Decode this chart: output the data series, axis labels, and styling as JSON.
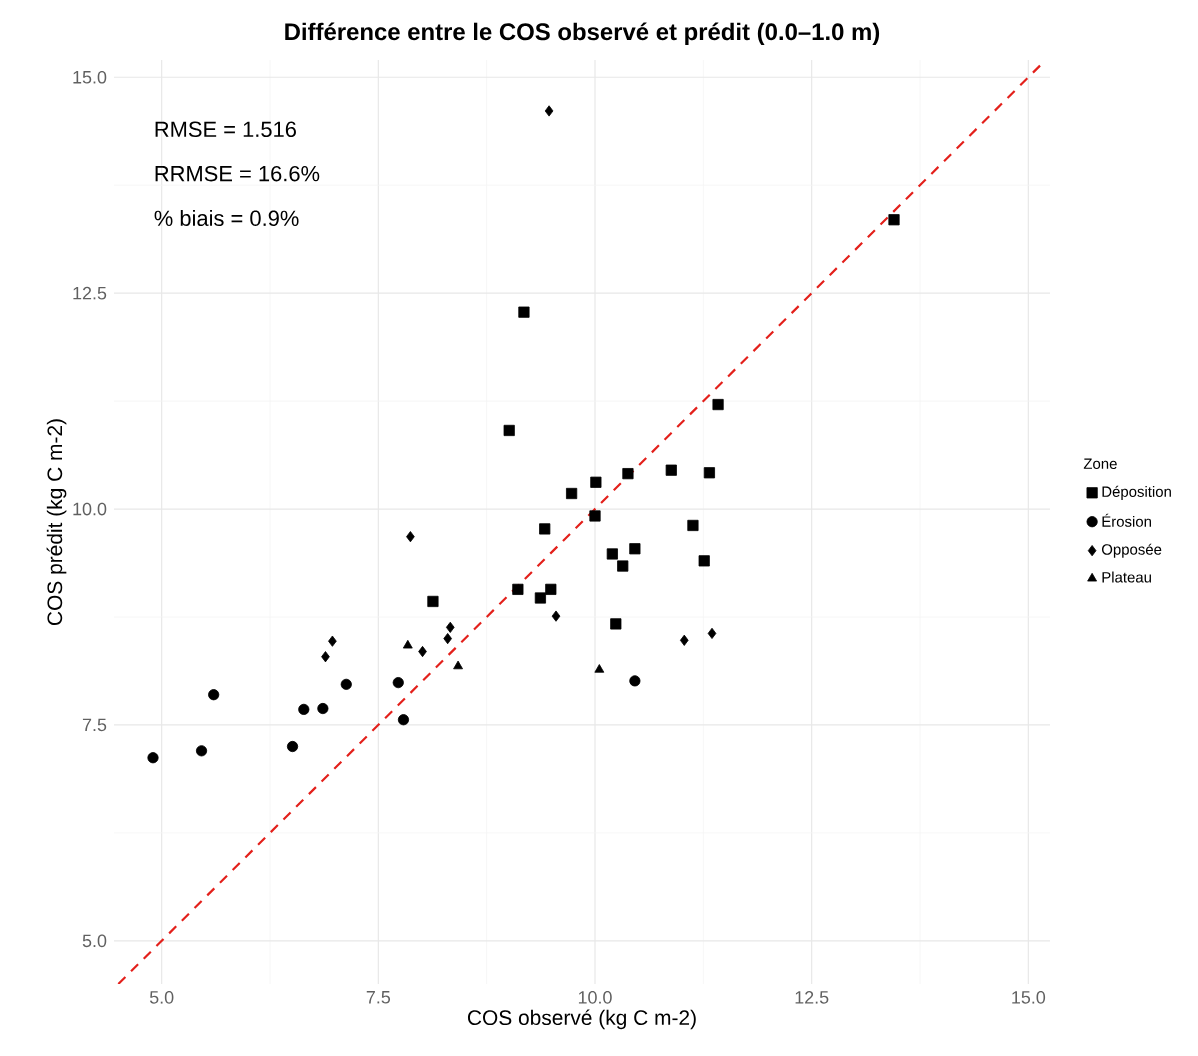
{
  "chart_data": {
    "type": "scatter",
    "title": "Différence entre le COS observé et prédit (0.0–1.0 m)",
    "xlabel": "COS observé (kg C m-2)",
    "ylabel": "COS prédit (kg C m-2)",
    "legend_title": "Zone",
    "annotations": [
      "RMSE = 1.516",
      "RRMSE = 16.6%",
      "% biais = 0.9%"
    ],
    "xlim": [
      4.45,
      15.25
    ],
    "ylim": [
      4.5,
      15.2
    ],
    "xticks": [
      {
        "value": 5,
        "label": "5.0"
      },
      {
        "value": 7.5,
        "label": "7.5"
      },
      {
        "value": 10,
        "label": "10.0"
      },
      {
        "value": 12.5,
        "label": "12.5"
      },
      {
        "value": 15,
        "label": "15.0"
      }
    ],
    "yticks": [
      {
        "value": 5,
        "label": "5.0"
      },
      {
        "value": 7.5,
        "label": "7.5"
      },
      {
        "value": 10,
        "label": "10.0"
      },
      {
        "value": 12.5,
        "label": "12.5"
      },
      {
        "value": 15,
        "label": "15.0"
      }
    ],
    "grid": true,
    "legend": "right",
    "series": [
      {
        "name": "Déposition",
        "color": "#000000",
        "marker": "square",
        "x": [
          8.13,
          9.11,
          9.37,
          9.49,
          9.42,
          9.73,
          10.0,
          13.45,
          9.18,
          9.01,
          11.42,
          10.01,
          10.38,
          10.88,
          11.32,
          11.13,
          10.2,
          10.46,
          10.32,
          11.26,
          10.24
        ],
        "values": [
          8.93,
          9.07,
          8.97,
          9.07,
          9.77,
          10.18,
          9.92,
          13.35,
          12.28,
          10.91,
          11.21,
          10.31,
          10.41,
          10.45,
          10.42,
          9.81,
          9.48,
          9.54,
          9.34,
          9.4,
          8.67
        ]
      },
      {
        "name": "Érosion",
        "color": "#000000",
        "marker": "circle",
        "x": [
          4.9,
          5.46,
          5.6,
          6.51,
          6.64,
          6.86,
          7.13,
          7.73,
          7.79,
          10.46
        ],
        "values": [
          7.12,
          7.2,
          7.85,
          7.25,
          7.68,
          7.69,
          7.97,
          7.99,
          7.56,
          8.01
        ]
      },
      {
        "name": "Opposée",
        "color": "#000000",
        "marker": "diamond",
        "x": [
          7.87,
          6.97,
          6.89,
          8.01,
          8.33,
          8.3,
          9.55,
          9.47,
          11.03,
          11.35
        ],
        "values": [
          9.68,
          8.47,
          8.29,
          8.35,
          8.63,
          8.5,
          8.76,
          14.61,
          8.48,
          8.56
        ]
      },
      {
        "name": "Plateau",
        "color": "#000000",
        "marker": "triangle",
        "x": [
          7.84,
          8.42,
          10.05
        ],
        "values": [
          8.42,
          8.18,
          8.14
        ]
      },
      {
        "type": "line",
        "color": "#e3201b",
        "line_style": "dashed",
        "marker": "none",
        "x": [
          4.5,
          15.2
        ],
        "values": [
          4.5,
          15.2
        ]
      }
    ]
  }
}
